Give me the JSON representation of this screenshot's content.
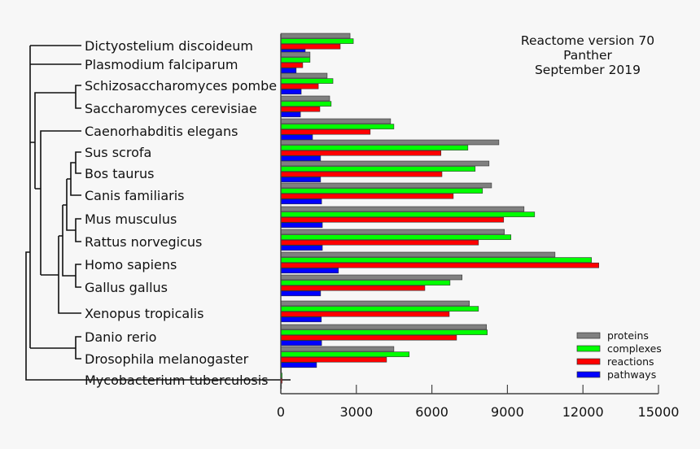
{
  "chart_data": {
    "type": "bar",
    "orientation": "horizontal",
    "title_lines": [
      "Reactome version 70",
      "Panther",
      "September 2019"
    ],
    "categories": [
      "Dictyostelium discoideum",
      "Plasmodium falciparum",
      "Schizosaccharomyces pombe",
      "Saccharomyces cerevisiae",
      "Caenorhabditis elegans",
      "Sus scrofa",
      "Bos taurus",
      "Canis familiaris",
      "Mus musculus",
      "Rattus norvegicus",
      "Homo sapiens",
      "Gallus gallus",
      "Xenopus tropicalis",
      "Danio rerio",
      "Drosophila melanogaster",
      "Mycobacterium tuberculosis"
    ],
    "series": [
      {
        "name": "proteins",
        "color": "#808080",
        "values": [
          2750,
          1160,
          1840,
          1940,
          4360,
          8660,
          8270,
          8370,
          9660,
          8880,
          10890,
          7200,
          7490,
          8170,
          4490,
          20
        ]
      },
      {
        "name": "complexes",
        "color": "#00ff00",
        "values": [
          2880,
          1160,
          2070,
          2000,
          4490,
          7430,
          7720,
          8010,
          10080,
          9140,
          12340,
          6720,
          7850,
          8200,
          5100,
          50
        ]
      },
      {
        "name": "reactions",
        "color": "#ff0000",
        "values": [
          2360,
          870,
          1490,
          1550,
          3550,
          6360,
          6400,
          6850,
          8850,
          7850,
          12630,
          5720,
          6690,
          6980,
          4200,
          50
        ]
      },
      {
        "name": "pathways",
        "color": "#0000ff",
        "values": [
          970,
          610,
          810,
          780,
          1260,
          1580,
          1580,
          1620,
          1650,
          1650,
          2290,
          1580,
          1610,
          1620,
          1420,
          20
        ]
      }
    ],
    "xlim": [
      0,
      15000
    ],
    "xticks": [
      "0",
      "3000",
      "6000",
      "9000",
      "12000",
      "15000"
    ],
    "xtick_values": [
      0,
      3000,
      6000,
      9000,
      12000,
      15000
    ],
    "legend_position": "bottom-right",
    "grid": false
  }
}
